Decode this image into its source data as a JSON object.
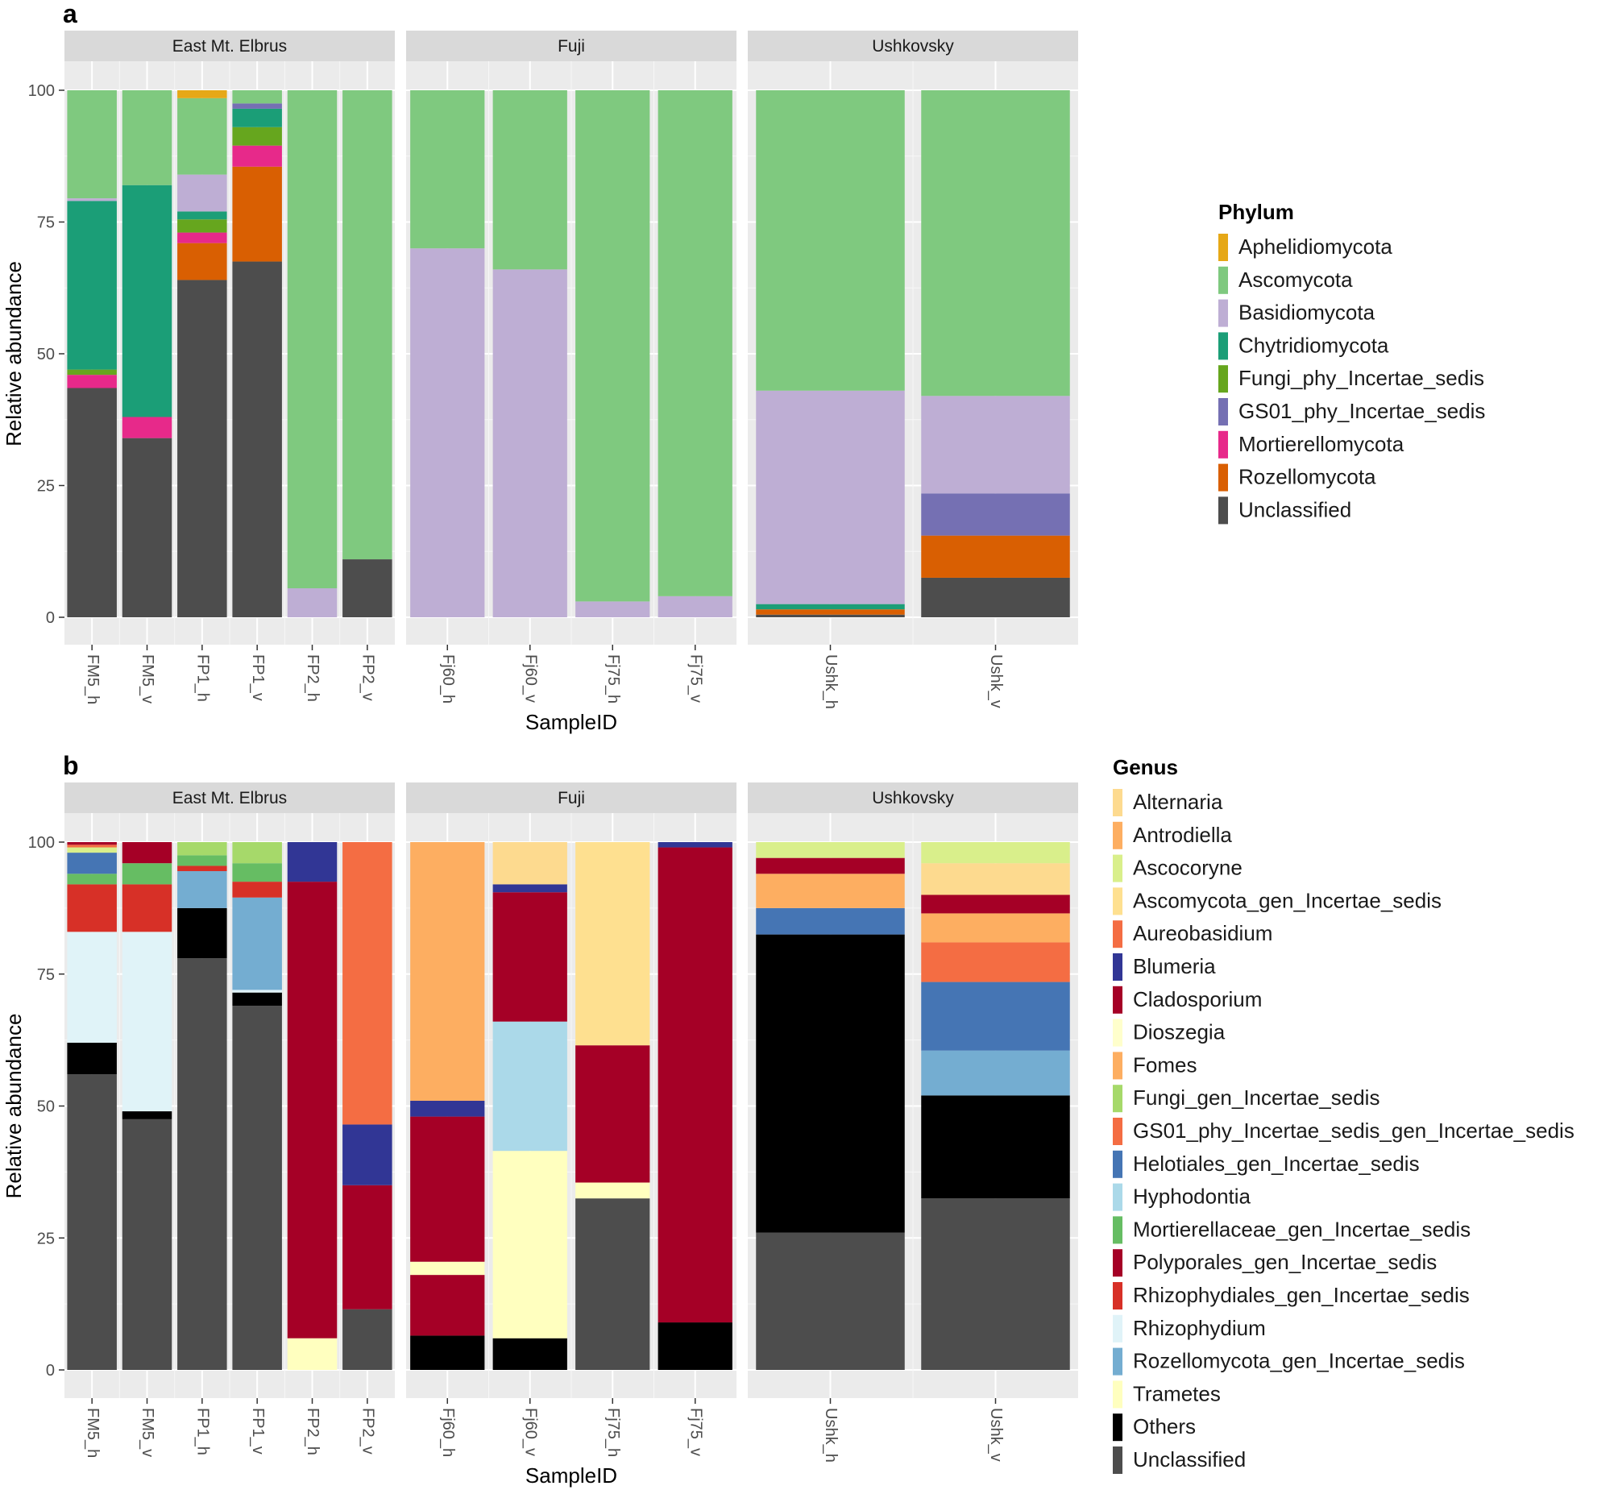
{
  "chart_data": [
    {
      "type": "bar",
      "panel_label": "a",
      "ylabel": "Relative abundance",
      "xlabel": "SampleID",
      "ylim": [
        0,
        100
      ],
      "yticks": [
        "0",
        "25",
        "50",
        "75",
        "100"
      ],
      "legend_title": "Phylum",
      "legend": [
        {
          "name": "Aphelidiomycota",
          "color": "#E6A817"
        },
        {
          "name": "Ascomycota",
          "color": "#7FC97F"
        },
        {
          "name": "Basidiomycota",
          "color": "#BEAED4"
        },
        {
          "name": "Chytridiomycota",
          "color": "#1B9E77"
        },
        {
          "name": "Fungi_phy_Incertae_sedis",
          "color": "#66A61E"
        },
        {
          "name": "GS01_phy_Incertae_sedis",
          "color": "#7570B3"
        },
        {
          "name": "Mortierellomycota",
          "color": "#E7298A"
        },
        {
          "name": "Rozellomycota",
          "color": "#D95F02"
        },
        {
          "name": "Unclassified",
          "color": "#4D4D4D"
        }
      ],
      "facets": [
        {
          "title": "East Mt. Elbrus",
          "samples": [
            {
              "id": "FM5_h",
              "stack": [
                [
                  "Unclassified",
                  43.5
                ],
                [
                  "Mortierellomycota",
                  2.5
                ],
                [
                  "Fungi_phy_Incertae_sedis",
                  1.0
                ],
                [
                  "Chytridiomycota",
                  32.0
                ],
                [
                  "Basidiomycota",
                  0.5
                ],
                [
                  "Ascomycota",
                  20.5
                ]
              ]
            },
            {
              "id": "FM5_v",
              "stack": [
                [
                  "Unclassified",
                  34.0
                ],
                [
                  "Mortierellomycota",
                  4.0
                ],
                [
                  "Chytridiomycota",
                  44.0
                ],
                [
                  "Ascomycota",
                  18.0
                ]
              ]
            },
            {
              "id": "FP1_h",
              "stack": [
                [
                  "Unclassified",
                  64.0
                ],
                [
                  "Rozellomycota",
                  7.0
                ],
                [
                  "Mortierellomycota",
                  2.0
                ],
                [
                  "Fungi_phy_Incertae_sedis",
                  2.5
                ],
                [
                  "Chytridiomycota",
                  1.5
                ],
                [
                  "Basidiomycota",
                  7.0
                ],
                [
                  "Ascomycota",
                  14.5
                ],
                [
                  "Aphelidiomycota",
                  1.5
                ]
              ]
            },
            {
              "id": "FP1_v",
              "stack": [
                [
                  "Unclassified",
                  67.5
                ],
                [
                  "Rozellomycota",
                  18.0
                ],
                [
                  "Mortierellomycota",
                  4.0
                ],
                [
                  "Fungi_phy_Incertae_sedis",
                  3.5
                ],
                [
                  "Chytridiomycota",
                  3.5
                ],
                [
                  "GS01_phy_Incertae_sedis",
                  1.0
                ],
                [
                  "Ascomycota",
                  2.5
                ]
              ]
            },
            {
              "id": "FP2_h",
              "stack": [
                [
                  "Basidiomycota",
                  5.5
                ],
                [
                  "Ascomycota",
                  94.5
                ]
              ]
            },
            {
              "id": "FP2_v",
              "stack": [
                [
                  "Unclassified",
                  11.0
                ],
                [
                  "Ascomycota",
                  89.0
                ]
              ]
            }
          ]
        },
        {
          "title": "Fuji",
          "samples": [
            {
              "id": "Fj60_h",
              "stack": [
                [
                  "Basidiomycota",
                  70.0
                ],
                [
                  "Ascomycota",
                  30.0
                ]
              ]
            },
            {
              "id": "Fj60_v",
              "stack": [
                [
                  "Basidiomycota",
                  66.0
                ],
                [
                  "Ascomycota",
                  34.0
                ]
              ]
            },
            {
              "id": "Fj75_h",
              "stack": [
                [
                  "Basidiomycota",
                  3.0
                ],
                [
                  "Ascomycota",
                  97.0
                ]
              ]
            },
            {
              "id": "Fj75_v",
              "stack": [
                [
                  "Basidiomycota",
                  4.0
                ],
                [
                  "Ascomycota",
                  96.0
                ]
              ]
            }
          ]
        },
        {
          "title": "Ushkovsky",
          "samples": [
            {
              "id": "Ushk_h",
              "stack": [
                [
                  "Unclassified",
                  0.5
                ],
                [
                  "Rozellomycota",
                  1.0
                ],
                [
                  "Chytridiomycota",
                  1.0
                ],
                [
                  "Basidiomycota",
                  40.5
                ],
                [
                  "Ascomycota",
                  57.0
                ]
              ]
            },
            {
              "id": "Ushk_v",
              "stack": [
                [
                  "Unclassified",
                  7.5
                ],
                [
                  "Rozellomycota",
                  8.0
                ],
                [
                  "GS01_phy_Incertae_sedis",
                  8.0
                ],
                [
                  "Basidiomycota",
                  18.5
                ],
                [
                  "Ascomycota",
                  58.0
                ]
              ]
            }
          ]
        }
      ]
    },
    {
      "type": "bar",
      "panel_label": "b",
      "ylabel": "Relative abundance",
      "xlabel": "SampleID",
      "ylim": [
        0,
        100
      ],
      "yticks": [
        "0",
        "25",
        "50",
        "75",
        "100"
      ],
      "legend_title": "Genus",
      "legend": [
        {
          "name": "Alternaria",
          "color": "#FDDA8F"
        },
        {
          "name": "Antrodiella",
          "color": "#FDAE61"
        },
        {
          "name": "Ascocoryne",
          "color": "#D9EF8B"
        },
        {
          "name": "Ascomycota_gen_Incertae_sedis",
          "color": "#FEE090"
        },
        {
          "name": "Aureobasidium",
          "color": "#F46D43"
        },
        {
          "name": "Blumeria",
          "color": "#313695"
        },
        {
          "name": "Cladosporium",
          "color": "#A50026"
        },
        {
          "name": "Dioszegia",
          "color": "#FFFFCC"
        },
        {
          "name": "Fomes",
          "color": "#FDAE61"
        },
        {
          "name": "Fungi_gen_Incertae_sedis",
          "color": "#A6D96A"
        },
        {
          "name": "GS01_phy_Incertae_sedis_gen_Incertae_sedis",
          "color": "#F46D43"
        },
        {
          "name": "Helotiales_gen_Incertae_sedis",
          "color": "#4575B4"
        },
        {
          "name": "Hyphodontia",
          "color": "#ABD9E9"
        },
        {
          "name": "Mortierellaceae_gen_Incertae_sedis",
          "color": "#66BD63"
        },
        {
          "name": "Polyporales_gen_Incertae_sedis",
          "color": "#A50026"
        },
        {
          "name": "Rhizophydiales_gen_Incertae_sedis",
          "color": "#D73027"
        },
        {
          "name": "Rhizophydium",
          "color": "#E0F3F8"
        },
        {
          "name": "Rozellomycota_gen_Incertae_sedis",
          "color": "#74ADD1"
        },
        {
          "name": "Trametes",
          "color": "#FFFFBF"
        },
        {
          "name": "Others",
          "color": "#000000"
        },
        {
          "name": "Unclassified",
          "color": "#4D4D4D"
        }
      ],
      "facets": [
        {
          "title": "East Mt. Elbrus",
          "samples": [
            {
              "id": "FM5_h",
              "stack": [
                [
                  "Unclassified",
                  56.0
                ],
                [
                  "Others",
                  6.0
                ],
                [
                  "Rhizophydium",
                  21.0
                ],
                [
                  "Rhizophydiales_gen_Incertae_sedis",
                  9.0
                ],
                [
                  "Mortierellaceae_gen_Incertae_sedis",
                  2.0
                ],
                [
                  "Helotiales_gen_Incertae_sedis",
                  4.0
                ],
                [
                  "Ascocoryne",
                  1.0
                ],
                [
                  "Aureobasidium",
                  0.5
                ],
                [
                  "Cladosporium",
                  0.5
                ]
              ]
            },
            {
              "id": "FM5_v",
              "stack": [
                [
                  "Unclassified",
                  47.5
                ],
                [
                  "Others",
                  1.5
                ],
                [
                  "Rhizophydium",
                  34.0
                ],
                [
                  "Rhizophydiales_gen_Incertae_sedis",
                  9.0
                ],
                [
                  "Mortierellaceae_gen_Incertae_sedis",
                  4.0
                ],
                [
                  "Cladosporium",
                  4.0
                ]
              ]
            },
            {
              "id": "FP1_h",
              "stack": [
                [
                  "Unclassified",
                  78.0
                ],
                [
                  "Others",
                  9.5
                ],
                [
                  "Rozellomycota_gen_Incertae_sedis",
                  7.0
                ],
                [
                  "Rhizophydiales_gen_Incertae_sedis",
                  1.0
                ],
                [
                  "Mortierellaceae_gen_Incertae_sedis",
                  2.0
                ],
                [
                  "Fungi_gen_Incertae_sedis",
                  2.5
                ]
              ]
            },
            {
              "id": "FP1_v",
              "stack": [
                [
                  "Unclassified",
                  69.0
                ],
                [
                  "Others",
                  2.5
                ],
                [
                  "Rhizophydium",
                  0.5
                ],
                [
                  "Rozellomycota_gen_Incertae_sedis",
                  17.5
                ],
                [
                  "Rhizophydiales_gen_Incertae_sedis",
                  3.0
                ],
                [
                  "Mortierellaceae_gen_Incertae_sedis",
                  3.5
                ],
                [
                  "Fungi_gen_Incertae_sedis",
                  4.0
                ]
              ]
            },
            {
              "id": "FP2_h",
              "stack": [
                [
                  "Trametes",
                  6.0
                ],
                [
                  "Cladosporium",
                  86.5
                ],
                [
                  "Blumeria",
                  7.5
                ]
              ]
            },
            {
              "id": "FP2_v",
              "stack": [
                [
                  "Unclassified",
                  11.5
                ],
                [
                  "Cladosporium",
                  23.5
                ],
                [
                  "Blumeria",
                  11.5
                ],
                [
                  "Aureobasidium",
                  53.5
                ]
              ]
            }
          ]
        },
        {
          "title": "Fuji",
          "samples": [
            {
              "id": "Fj60_h",
              "stack": [
                [
                  "Others",
                  6.5
                ],
                [
                  "Polyporales_gen_Incertae_sedis",
                  11.5
                ],
                [
                  "Trametes",
                  2.5
                ],
                [
                  "Polyporales_gen_Incertae_sedis",
                  27.5
                ],
                [
                  "Blumeria",
                  3.0
                ],
                [
                  "Antrodiella",
                  49.0
                ]
              ]
            },
            {
              "id": "Fj60_v",
              "stack": [
                [
                  "Others",
                  6.0
                ],
                [
                  "Trametes",
                  35.5
                ],
                [
                  "Hyphodontia",
                  24.5
                ],
                [
                  "Polyporales_gen_Incertae_sedis",
                  24.5
                ],
                [
                  "Blumeria",
                  1.5
                ],
                [
                  "Alternaria",
                  8.0
                ]
              ]
            },
            {
              "id": "Fj75_h",
              "stack": [
                [
                  "Unclassified",
                  32.5
                ],
                [
                  "Trametes",
                  3.0
                ],
                [
                  "Cladosporium",
                  26.0
                ],
                [
                  "Ascomycota_gen_Incertae_sedis",
                  38.5
                ]
              ]
            },
            {
              "id": "Fj75_v",
              "stack": [
                [
                  "Others",
                  9.0
                ],
                [
                  "Cladosporium",
                  90.0
                ],
                [
                  "Blumeria",
                  1.0
                ]
              ]
            }
          ]
        },
        {
          "title": "Ushkovsky",
          "samples": [
            {
              "id": "Ushk_h",
              "stack": [
                [
                  "Unclassified",
                  26.0
                ],
                [
                  "Others",
                  56.5
                ],
                [
                  "Helotiales_gen_Incertae_sedis",
                  5.0
                ],
                [
                  "Fomes",
                  6.5
                ],
                [
                  "Cladosporium",
                  3.0
                ],
                [
                  "Ascocoryne",
                  3.0
                ]
              ]
            },
            {
              "id": "Ushk_v",
              "stack": [
                [
                  "Unclassified",
                  32.5
                ],
                [
                  "Others",
                  19.5
                ],
                [
                  "Rozellomycota_gen_Incertae_sedis",
                  8.5
                ],
                [
                  "Helotiales_gen_Incertae_sedis",
                  13.0
                ],
                [
                  "Aureobasidium",
                  7.5
                ],
                [
                  "Fomes",
                  5.5
                ],
                [
                  "Cladosporium",
                  3.5
                ],
                [
                  "Alternaria",
                  6.0
                ],
                [
                  "Ascocoryne",
                  4.0
                ]
              ]
            }
          ]
        }
      ]
    }
  ]
}
